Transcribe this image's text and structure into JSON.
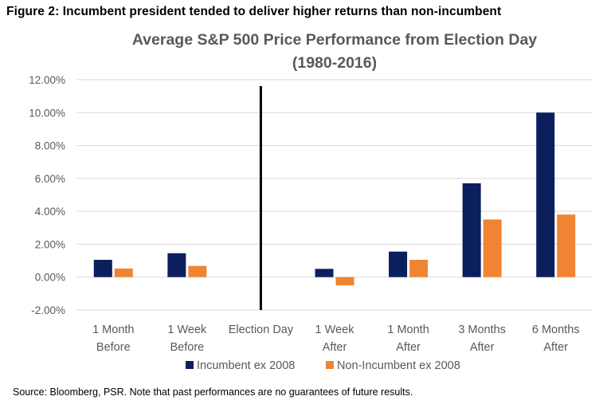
{
  "figure_caption": "Figure 2: Incumbent president tended to deliver higher returns than non-incumbent",
  "source_note": "Source: Bloomberg, PSR. Note that past performances are no guarantees of future results.",
  "colors": {
    "incumbent": "#0a1f5c",
    "non_incumbent": "#f08433",
    "grid": "#d9d9d9",
    "axis_text": "#595959",
    "title_text": "#595959",
    "election_line": "#000000"
  },
  "chart_data": {
    "type": "bar",
    "title_lines": [
      "Average S&P 500 Price Performance from Election Day",
      "(1980-2016)"
    ],
    "categories": [
      [
        "1 Month",
        "Before"
      ],
      [
        "1 Week",
        "Before"
      ],
      [
        "Election Day"
      ],
      [
        "1 Week",
        "After"
      ],
      [
        "1 Month",
        "After"
      ],
      [
        "3 Months",
        "After"
      ],
      [
        "6 Months",
        "After"
      ]
    ],
    "series": [
      {
        "name": "Incumbent ex 2008",
        "color": "#0a1f5c",
        "values": [
          0.0105,
          0.0145,
          null,
          0.005,
          0.0155,
          0.057,
          0.1
        ]
      },
      {
        "name": "Non-Incumbent ex 2008",
        "color": "#f08433",
        "values": [
          0.0052,
          0.0068,
          null,
          -0.005,
          0.0105,
          0.035,
          0.038
        ]
      }
    ],
    "y_ticks": [
      "12.00%",
      "10.00%",
      "8.00%",
      "6.00%",
      "4.00%",
      "2.00%",
      "0.00%",
      "-2.00%"
    ],
    "ylim": [
      -0.02,
      0.12
    ],
    "grid": true,
    "legend_position": "bottom-center",
    "election_day_marker": true
  }
}
